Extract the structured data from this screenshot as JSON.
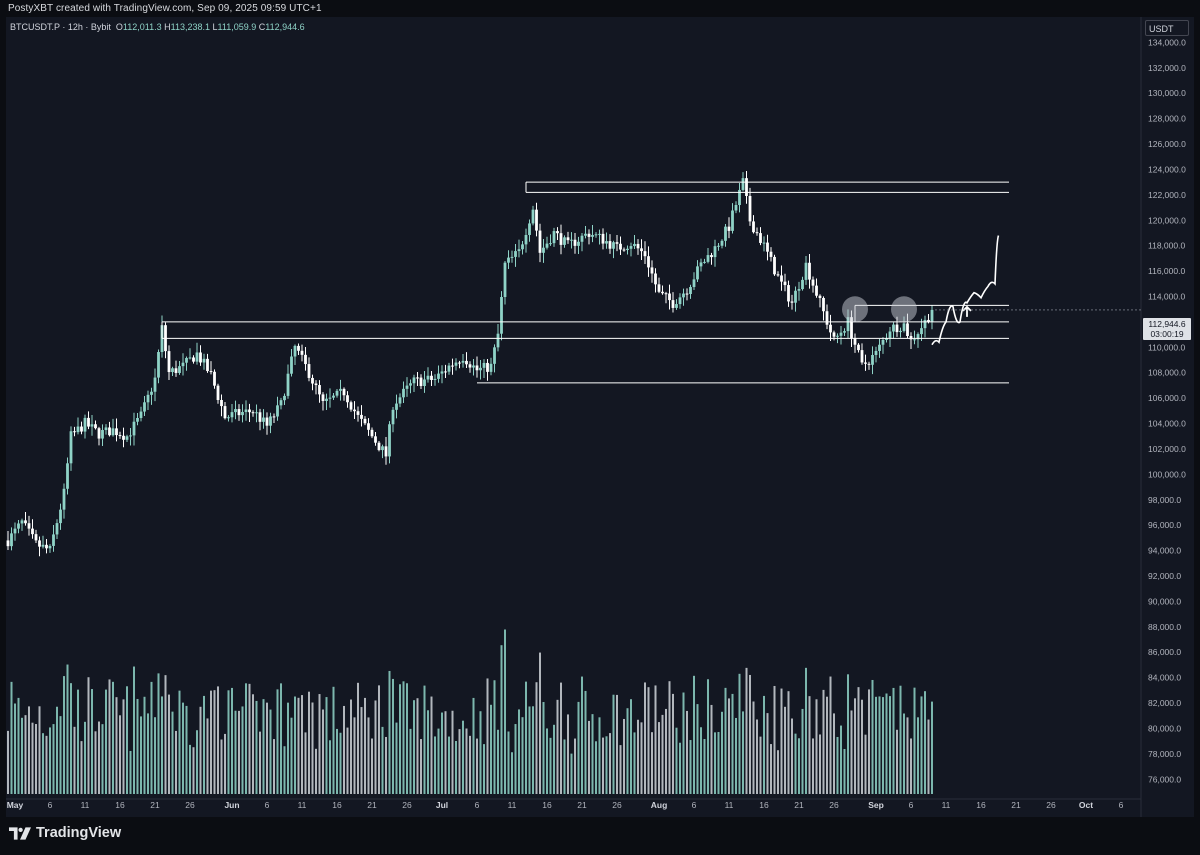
{
  "caption": "PostyXBT created with TradingView.com, Sep 09, 2025 09:59 UTC+1",
  "symbol": {
    "name": "BTCUSDT.P · 12h · Bybit",
    "open_label": "O",
    "open": "112,011.3",
    "high_label": "H",
    "high": "113,238.1",
    "low_label": "L",
    "low": "111,059.9",
    "close_label": "C",
    "close": "112,944.6"
  },
  "currency": "USDT",
  "price_tag": {
    "price": "112,944.6",
    "countdown": "03:00:19"
  },
  "logo_text": "TradingView",
  "colors": {
    "background": "#131722",
    "candle": "#8fd3c7",
    "volume": "#8fd3c7",
    "annotation": "#ffffff",
    "text": "#b2b5be"
  },
  "chart_data": {
    "type": "candlestick",
    "interval": "12h",
    "price_axis": {
      "ylim": [
        75000,
        136000
      ],
      "ticks": [
        76000,
        78000,
        80000,
        82000,
        84000,
        86000,
        88000,
        90000,
        92000,
        94000,
        96000,
        98000,
        100000,
        102000,
        104000,
        106000,
        108000,
        110000,
        112000,
        114000,
        116000,
        118000,
        120000,
        122000,
        124000,
        126000,
        128000,
        130000,
        132000,
        134000
      ],
      "tick_labels": [
        "76,000.0",
        "78,000.0",
        "80,000.0",
        "82,000.0",
        "84,000.0",
        "86,000.0",
        "88,000.0",
        "90,000.0",
        "92,000.0",
        "94,000.0",
        "96,000.0",
        "98,000.0",
        "100,000.0",
        "102,000.0",
        "104,000.0",
        "106,000.0",
        "108,000.0",
        "110,000.0",
        "112,000.0",
        "114,000.0",
        "116,000.0",
        "118,000.0",
        "120,000.0",
        "122,000.0",
        "124,000.0",
        "126,000.0",
        "128,000.0",
        "130,000.0",
        "132,000.0",
        "134,000.0"
      ]
    },
    "time_axis": {
      "xlim": [
        "2025-04-30",
        "2025-10-10"
      ],
      "ticks": [
        "2025-05-01",
        "2025-05-06",
        "2025-05-11",
        "2025-05-16",
        "2025-05-21",
        "2025-05-26",
        "2025-06-01",
        "2025-06-06",
        "2025-06-11",
        "2025-06-16",
        "2025-06-21",
        "2025-06-26",
        "2025-07-01",
        "2025-07-06",
        "2025-07-11",
        "2025-07-16",
        "2025-07-21",
        "2025-07-26",
        "2025-08-01",
        "2025-08-06",
        "2025-08-11",
        "2025-08-16",
        "2025-08-21",
        "2025-08-26",
        "2025-09-01",
        "2025-09-06",
        "2025-09-11",
        "2025-09-16",
        "2025-09-21",
        "2025-09-26",
        "2025-10-01",
        "2025-10-06"
      ],
      "tick_labels": [
        "May",
        "6",
        "11",
        "16",
        "21",
        "26",
        "Jun",
        "6",
        "11",
        "16",
        "21",
        "26",
        "Jul",
        "6",
        "11",
        "16",
        "21",
        "26",
        "Aug",
        "6",
        "11",
        "16",
        "21",
        "26",
        "Sep",
        "6",
        "11",
        "16",
        "21",
        "26",
        "Oct",
        "6"
      ],
      "bold_labels": [
        "May",
        "Jun",
        "Jul",
        "Aug",
        "Sep",
        "Oct"
      ]
    },
    "close_path": [
      [
        "2025-04-30",
        94800
      ],
      [
        "2025-05-02",
        96200
      ],
      [
        "2025-05-04",
        94500
      ],
      [
        "2025-05-06",
        94000
      ],
      [
        "2025-05-08",
        98500
      ],
      [
        "2025-05-09",
        103000
      ],
      [
        "2025-05-11",
        104000
      ],
      [
        "2025-05-13",
        103200
      ],
      [
        "2025-05-15",
        103500
      ],
      [
        "2025-05-17",
        103000
      ],
      [
        "2025-05-19",
        104600
      ],
      [
        "2025-05-21",
        107500
      ],
      [
        "2025-05-22",
        111500
      ],
      [
        "2025-05-23",
        108000
      ],
      [
        "2025-05-25",
        108500
      ],
      [
        "2025-05-27",
        109500
      ],
      [
        "2025-05-29",
        107800
      ],
      [
        "2025-05-31",
        104500
      ],
      [
        "2025-06-02",
        104800
      ],
      [
        "2025-06-04",
        105000
      ],
      [
        "2025-06-06",
        103800
      ],
      [
        "2025-06-08",
        105500
      ],
      [
        "2025-06-10",
        110000
      ],
      [
        "2025-06-12",
        108000
      ],
      [
        "2025-06-14",
        105500
      ],
      [
        "2025-06-17",
        106500
      ],
      [
        "2025-06-19",
        104500
      ],
      [
        "2025-06-21",
        103000
      ],
      [
        "2025-06-23",
        101500
      ],
      [
        "2025-06-24",
        105500
      ],
      [
        "2025-06-27",
        107300
      ],
      [
        "2025-06-30",
        107500
      ],
      [
        "2025-07-02",
        108500
      ],
      [
        "2025-07-04",
        109300
      ],
      [
        "2025-07-06",
        108200
      ],
      [
        "2025-07-08",
        108500
      ],
      [
        "2025-07-09",
        111000
      ],
      [
        "2025-07-10",
        116500
      ],
      [
        "2025-07-12",
        117500
      ],
      [
        "2025-07-14",
        121000
      ],
      [
        "2025-07-15",
        117500
      ],
      [
        "2025-07-17",
        119000
      ],
      [
        "2025-07-19",
        118000
      ],
      [
        "2025-07-22",
        119000
      ],
      [
        "2025-07-24",
        118500
      ],
      [
        "2025-07-26",
        117800
      ],
      [
        "2025-07-28",
        118200
      ],
      [
        "2025-07-30",
        117300
      ],
      [
        "2025-08-01",
        114200
      ],
      [
        "2025-08-03",
        113500
      ],
      [
        "2025-08-05",
        114600
      ],
      [
        "2025-08-07",
        116500
      ],
      [
        "2025-08-09",
        117800
      ],
      [
        "2025-08-11",
        119500
      ],
      [
        "2025-08-13",
        123000
      ],
      [
        "2025-08-14",
        120000
      ],
      [
        "2025-08-16",
        118000
      ],
      [
        "2025-08-18",
        115500
      ],
      [
        "2025-08-20",
        113500
      ],
      [
        "2025-08-22",
        116500
      ],
      [
        "2025-08-24",
        113500
      ],
      [
        "2025-08-26",
        110500
      ],
      [
        "2025-08-28",
        112000
      ],
      [
        "2025-08-30",
        108500
      ],
      [
        "2025-09-01",
        109500
      ],
      [
        "2025-09-03",
        111500
      ],
      [
        "2025-09-05",
        111800
      ],
      [
        "2025-09-06",
        110500
      ],
      [
        "2025-09-08",
        112000
      ],
      [
        "2025-09-09",
        112944.6
      ]
    ],
    "volume": {
      "ylim": [
        0,
        100
      ],
      "note": "relative volume, no axis labels printed"
    },
    "levels": [
      {
        "price": 123000,
        "from": "2025-07-13",
        "to": "2025-09-20"
      },
      {
        "price": 122200,
        "from": "2025-07-13",
        "to": "2025-09-20"
      },
      {
        "price": 113300,
        "from": "2025-08-29",
        "to": "2025-09-20"
      },
      {
        "price": 112000,
        "from": "2025-05-22",
        "to": "2025-09-20"
      },
      {
        "price": 110700,
        "from": "2025-05-22",
        "to": "2025-09-20"
      },
      {
        "price": 107200,
        "from": "2025-07-06",
        "to": "2025-09-20"
      }
    ],
    "projection": [
      [
        "2025-09-09",
        110200
      ],
      [
        "2025-09-10",
        110400
      ],
      [
        "2025-09-11",
        112000
      ],
      [
        "2025-09-12",
        113200
      ],
      [
        "2025-09-13",
        112000
      ],
      [
        "2025-09-14",
        113500
      ],
      [
        "2025-09-15",
        114300
      ],
      [
        "2025-09-16",
        113900
      ],
      [
        "2025-09-17",
        114800
      ],
      [
        "2025-09-18",
        115000
      ],
      [
        "2025-09-18.5",
        118800
      ]
    ],
    "highlight_circles": [
      {
        "date": "2025-08-29",
        "price": 113000
      },
      {
        "date": "2025-09-05",
        "price": 113000
      }
    ],
    "arrow": {
      "date": "2025-09-14",
      "price": 112400
    }
  }
}
